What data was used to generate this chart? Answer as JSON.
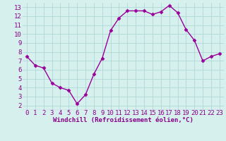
{
  "x": [
    0,
    1,
    2,
    3,
    4,
    5,
    6,
    7,
    8,
    9,
    10,
    11,
    12,
    13,
    14,
    15,
    16,
    17,
    18,
    19,
    20,
    21,
    22,
    23
  ],
  "y": [
    7.5,
    6.5,
    6.2,
    4.5,
    4.0,
    3.7,
    2.2,
    3.2,
    5.5,
    7.3,
    10.4,
    11.8,
    12.6,
    12.6,
    12.6,
    12.2,
    12.5,
    13.2,
    12.4,
    10.5,
    9.3,
    7.0,
    7.5,
    7.8
  ],
  "line_color": "#990099",
  "marker": "D",
  "marker_size": 2.5,
  "bg_color": "#d6f0ee",
  "grid_color": "#b0d8d8",
  "xlabel": "Windchill (Refroidissement éolien,°C)",
  "xlim": [
    -0.5,
    23.5
  ],
  "ylim": [
    1.5,
    13.5
  ],
  "yticks": [
    2,
    3,
    4,
    5,
    6,
    7,
    8,
    9,
    10,
    11,
    12,
    13
  ],
  "xticks": [
    0,
    1,
    2,
    3,
    4,
    5,
    6,
    7,
    8,
    9,
    10,
    11,
    12,
    13,
    14,
    15,
    16,
    17,
    18,
    19,
    20,
    21,
    22,
    23
  ],
  "tick_label_color": "#880088",
  "xlabel_color": "#880088",
  "xlabel_fontsize": 6.5,
  "tick_fontsize": 6.5,
  "linewidth": 1.0
}
